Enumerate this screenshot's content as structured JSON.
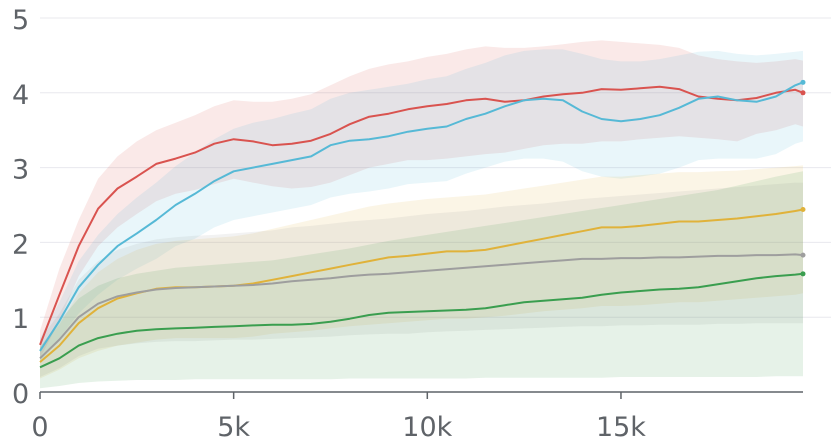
{
  "chart_data": {
    "type": "line",
    "title": "",
    "xlabel": "",
    "ylabel": "",
    "xlim": [
      0,
      19700
    ],
    "ylim": [
      0,
      5
    ],
    "grid": true,
    "x_ticks": [
      0,
      5000,
      10000,
      15000
    ],
    "x_tick_labels": [
      "0",
      "5k",
      "10k",
      "15k"
    ],
    "y_ticks": [
      0,
      1,
      2,
      3,
      4,
      5
    ],
    "y_tick_labels": [
      "0",
      "1",
      "2",
      "3",
      "4",
      "5"
    ],
    "x": [
      0,
      500,
      1000,
      1500,
      2000,
      2500,
      3000,
      3500,
      4000,
      4500,
      5000,
      5500,
      6000,
      6500,
      7000,
      7500,
      8000,
      8500,
      9000,
      9500,
      10000,
      10500,
      11000,
      11500,
      12000,
      12500,
      13000,
      13500,
      14000,
      14500,
      15000,
      15500,
      16000,
      16500,
      17000,
      17500,
      18000,
      18500,
      19000,
      19500,
      19700
    ],
    "series": [
      {
        "color": "#d9534f",
        "values": [
          0.63,
          1.3,
          1.95,
          2.45,
          2.72,
          2.88,
          3.05,
          3.12,
          3.2,
          3.32,
          3.38,
          3.35,
          3.3,
          3.32,
          3.36,
          3.45,
          3.58,
          3.68,
          3.72,
          3.78,
          3.82,
          3.85,
          3.9,
          3.92,
          3.88,
          3.9,
          3.95,
          3.98,
          4.0,
          4.05,
          4.04,
          4.06,
          4.08,
          4.05,
          3.95,
          3.92,
          3.9,
          3.93,
          4.0,
          4.04,
          4.0
        ],
        "band_lo": [
          0.45,
          0.95,
          1.55,
          1.95,
          2.2,
          2.38,
          2.55,
          2.65,
          2.7,
          2.78,
          2.85,
          2.8,
          2.75,
          2.72,
          2.74,
          2.8,
          2.9,
          3.0,
          3.05,
          3.1,
          3.1,
          3.12,
          3.15,
          3.18,
          3.2,
          3.25,
          3.3,
          3.32,
          3.32,
          3.35,
          3.35,
          3.38,
          3.4,
          3.42,
          3.4,
          3.38,
          3.35,
          3.45,
          3.5,
          3.58,
          3.55
        ],
        "band_hi": [
          0.82,
          1.65,
          2.3,
          2.85,
          3.15,
          3.35,
          3.5,
          3.6,
          3.7,
          3.82,
          3.9,
          3.88,
          3.88,
          3.92,
          3.98,
          4.1,
          4.22,
          4.32,
          4.38,
          4.42,
          4.48,
          4.52,
          4.58,
          4.62,
          4.6,
          4.6,
          4.62,
          4.65,
          4.68,
          4.7,
          4.68,
          4.66,
          4.64,
          4.6,
          4.5,
          4.45,
          4.42,
          4.4,
          4.42,
          4.45,
          4.43
        ]
      },
      {
        "color": "#56b9d6",
        "values": [
          0.55,
          0.95,
          1.4,
          1.7,
          1.95,
          2.12,
          2.3,
          2.5,
          2.65,
          2.82,
          2.95,
          3.0,
          3.05,
          3.1,
          3.15,
          3.3,
          3.36,
          3.38,
          3.42,
          3.48,
          3.52,
          3.55,
          3.65,
          3.72,
          3.82,
          3.9,
          3.92,
          3.9,
          3.75,
          3.65,
          3.62,
          3.65,
          3.7,
          3.8,
          3.92,
          3.95,
          3.9,
          3.88,
          3.95,
          4.1,
          4.14
        ],
        "band_lo": [
          0.4,
          0.72,
          1.05,
          1.3,
          1.5,
          1.65,
          1.78,
          1.95,
          2.05,
          2.2,
          2.3,
          2.35,
          2.4,
          2.45,
          2.5,
          2.6,
          2.65,
          2.68,
          2.72,
          2.78,
          2.8,
          2.82,
          2.92,
          3.0,
          3.08,
          3.12,
          3.12,
          3.08,
          2.95,
          2.88,
          2.85,
          2.88,
          2.92,
          3.0,
          3.1,
          3.12,
          3.12,
          3.12,
          3.18,
          3.32,
          3.35
        ],
        "band_hi": [
          0.72,
          1.2,
          1.75,
          2.1,
          2.38,
          2.6,
          2.8,
          3.02,
          3.2,
          3.38,
          3.52,
          3.6,
          3.65,
          3.72,
          3.78,
          3.92,
          4.0,
          4.04,
          4.08,
          4.12,
          4.18,
          4.22,
          4.32,
          4.4,
          4.5,
          4.56,
          4.58,
          4.58,
          4.52,
          4.45,
          4.42,
          4.42,
          4.45,
          4.5,
          4.55,
          4.56,
          4.52,
          4.5,
          4.52,
          4.55,
          4.56
        ]
      },
      {
        "color": "#e0b23a",
        "values": [
          0.4,
          0.62,
          0.92,
          1.12,
          1.25,
          1.32,
          1.38,
          1.4,
          1.4,
          1.41,
          1.42,
          1.45,
          1.5,
          1.55,
          1.6,
          1.65,
          1.7,
          1.75,
          1.8,
          1.82,
          1.85,
          1.88,
          1.88,
          1.9,
          1.95,
          2.0,
          2.05,
          2.1,
          2.15,
          2.2,
          2.2,
          2.22,
          2.25,
          2.28,
          2.28,
          2.3,
          2.32,
          2.35,
          2.38,
          2.42,
          2.44
        ],
        "band_lo": [
          0.18,
          0.3,
          0.45,
          0.55,
          0.62,
          0.66,
          0.7,
          0.72,
          0.72,
          0.72,
          0.72,
          0.74,
          0.78,
          0.8,
          0.82,
          0.85,
          0.88,
          0.9,
          0.92,
          0.94,
          0.96,
          0.98,
          0.98,
          1.0,
          1.02,
          1.05,
          1.08,
          1.1,
          1.12,
          1.15,
          1.15,
          1.16,
          1.18,
          1.2,
          1.2,
          1.22,
          1.24,
          1.26,
          1.28,
          1.3,
          1.32
        ],
        "band_hi": [
          0.6,
          0.9,
          1.32,
          1.6,
          1.78,
          1.9,
          1.98,
          2.02,
          2.04,
          2.06,
          2.08,
          2.12,
          2.18,
          2.24,
          2.3,
          2.36,
          2.42,
          2.48,
          2.52,
          2.55,
          2.58,
          2.6,
          2.62,
          2.64,
          2.68,
          2.72,
          2.76,
          2.8,
          2.84,
          2.88,
          2.88,
          2.9,
          2.92,
          2.94,
          2.94,
          2.95,
          2.96,
          2.98,
          3.0,
          3.02,
          3.03
        ]
      },
      {
        "color": "#9e9e9e",
        "values": [
          0.45,
          0.7,
          1.0,
          1.18,
          1.28,
          1.33,
          1.37,
          1.39,
          1.4,
          1.41,
          1.42,
          1.43,
          1.45,
          1.48,
          1.5,
          1.52,
          1.55,
          1.57,
          1.58,
          1.6,
          1.62,
          1.64,
          1.66,
          1.68,
          1.7,
          1.72,
          1.74,
          1.76,
          1.78,
          1.78,
          1.79,
          1.79,
          1.8,
          1.8,
          1.81,
          1.82,
          1.82,
          1.83,
          1.83,
          1.84,
          1.83
        ],
        "band_lo": [
          0.2,
          0.32,
          0.48,
          0.58,
          0.62,
          0.65,
          0.67,
          0.68,
          0.68,
          0.69,
          0.7,
          0.7,
          0.71,
          0.72,
          0.73,
          0.74,
          0.76,
          0.77,
          0.78,
          0.78,
          0.8,
          0.81,
          0.82,
          0.83,
          0.84,
          0.85,
          0.86,
          0.87,
          0.88,
          0.88,
          0.89,
          0.89,
          0.9,
          0.9,
          0.9,
          0.91,
          0.91,
          0.92,
          0.92,
          0.92,
          0.92
        ],
        "band_hi": [
          0.7,
          1.05,
          1.5,
          1.75,
          1.9,
          1.98,
          2.04,
          2.07,
          2.09,
          2.1,
          2.12,
          2.14,
          2.16,
          2.2,
          2.22,
          2.25,
          2.28,
          2.3,
          2.32,
          2.35,
          2.38,
          2.4,
          2.42,
          2.45,
          2.48,
          2.5,
          2.52,
          2.55,
          2.58,
          2.6,
          2.62,
          2.64,
          2.66,
          2.68,
          2.7,
          2.72,
          2.74,
          2.76,
          2.78,
          2.8,
          2.8
        ]
      },
      {
        "color": "#3a9e4f",
        "values": [
          0.33,
          0.45,
          0.62,
          0.72,
          0.78,
          0.82,
          0.84,
          0.85,
          0.86,
          0.87,
          0.88,
          0.89,
          0.9,
          0.9,
          0.91,
          0.94,
          0.98,
          1.03,
          1.06,
          1.07,
          1.08,
          1.09,
          1.1,
          1.12,
          1.16,
          1.2,
          1.22,
          1.24,
          1.26,
          1.3,
          1.33,
          1.35,
          1.37,
          1.38,
          1.4,
          1.44,
          1.48,
          1.52,
          1.55,
          1.57,
          1.58
        ],
        "band_lo": [
          0.05,
          0.08,
          0.12,
          0.14,
          0.15,
          0.16,
          0.16,
          0.16,
          0.17,
          0.17,
          0.17,
          0.17,
          0.17,
          0.17,
          0.17,
          0.17,
          0.18,
          0.18,
          0.18,
          0.18,
          0.18,
          0.18,
          0.18,
          0.19,
          0.19,
          0.19,
          0.19,
          0.19,
          0.19,
          0.19,
          0.2,
          0.2,
          0.2,
          0.2,
          0.2,
          0.2,
          0.2,
          0.2,
          0.21,
          0.21,
          0.21
        ],
        "band_hi": [
          0.6,
          0.95,
          1.25,
          1.42,
          1.52,
          1.58,
          1.62,
          1.66,
          1.68,
          1.7,
          1.72,
          1.74,
          1.76,
          1.8,
          1.84,
          1.88,
          1.92,
          1.97,
          2.02,
          2.06,
          2.1,
          2.14,
          2.18,
          2.22,
          2.26,
          2.3,
          2.34,
          2.38,
          2.42,
          2.46,
          2.5,
          2.54,
          2.58,
          2.62,
          2.66,
          2.7,
          2.76,
          2.82,
          2.88,
          2.93,
          2.95
        ]
      }
    ]
  }
}
